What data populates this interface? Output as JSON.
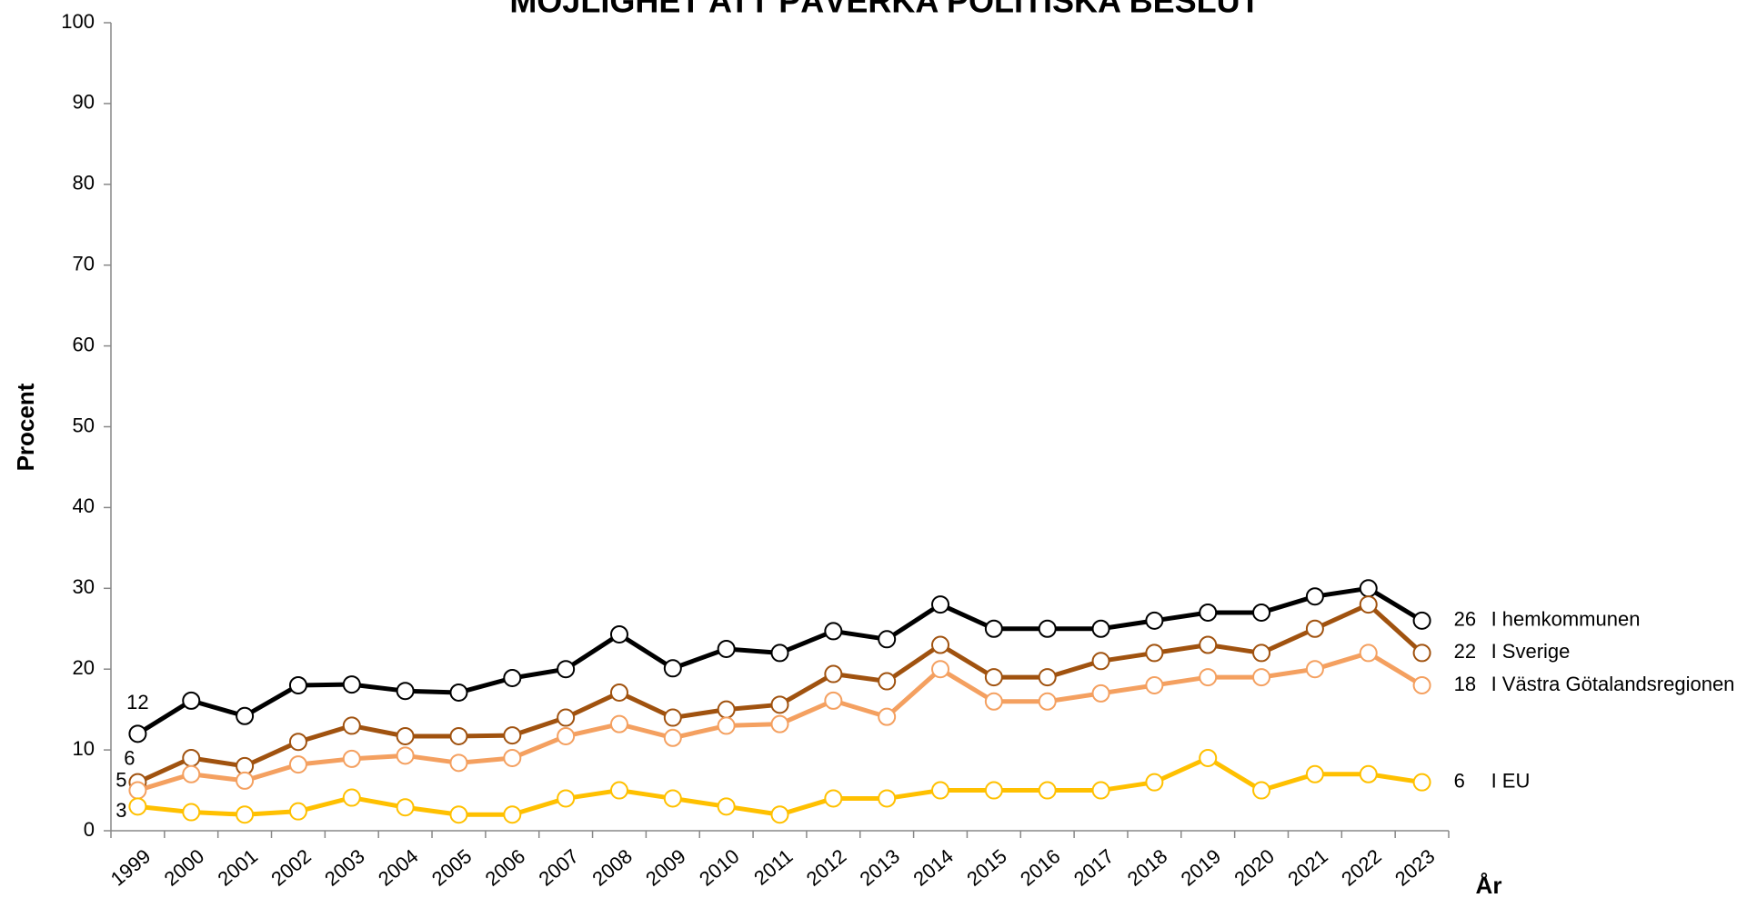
{
  "chart_data": {
    "type": "line",
    "title": "MÖJLIGHET ATT PÅVERKA POLITISKA BESLUT",
    "y_label": "Procent",
    "x_label": "År",
    "categories": [
      "1999",
      "2000",
      "2001",
      "2002",
      "2003",
      "2004",
      "2005",
      "2006",
      "2007",
      "2008",
      "2009",
      "2010",
      "2011",
      "2012",
      "2013",
      "2014",
      "2015",
      "2016",
      "2017",
      "2018",
      "2019",
      "2020",
      "2021",
      "2022",
      "2023"
    ],
    "series": [
      {
        "name": "I hemkommunen",
        "color": "#000000",
        "values": [
          12,
          16.1,
          14.2,
          18,
          18.1,
          17.3,
          17.1,
          18.9,
          20,
          24.3,
          20.1,
          22.5,
          22,
          24.7,
          23.7,
          28,
          25,
          25,
          25,
          26,
          27,
          27,
          29,
          30,
          26
        ]
      },
      {
        "name": "I Sverige",
        "color": "#a0520f",
        "values": [
          6,
          9,
          8,
          11,
          13,
          11.7,
          11.7,
          11.8,
          14,
          17.1,
          14,
          15,
          15.6,
          19.4,
          18.5,
          23,
          19,
          19,
          21,
          22,
          23,
          22,
          25,
          28,
          22
        ]
      },
      {
        "name": "I Västra Götalandsregionen",
        "color": "#f4a060",
        "values": [
          5,
          7,
          6.2,
          8.2,
          8.9,
          9.3,
          8.4,
          9,
          11.7,
          13.2,
          11.5,
          13,
          13.2,
          16.1,
          14.1,
          20,
          16,
          16,
          17,
          18,
          19,
          19,
          20,
          22,
          18
        ]
      },
      {
        "name": "I EU",
        "color": "#ffc000",
        "values": [
          3,
          2.3,
          2,
          2.4,
          4.1,
          2.9,
          2,
          2,
          4,
          5,
          4,
          3,
          2,
          4,
          4,
          5,
          5,
          5,
          5,
          6,
          9,
          5,
          7,
          7,
          6
        ]
      }
    ],
    "ylim": [
      0,
      100
    ],
    "yticks": [
      0,
      10,
      20,
      30,
      40,
      50,
      60,
      70,
      80,
      90,
      100
    ]
  }
}
